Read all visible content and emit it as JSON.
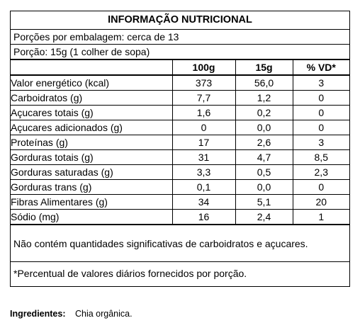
{
  "label": {
    "title": "INFORMAÇÃO NUTRICIONAL",
    "servings_per_package": "Porções por embalagem: cerca de 13",
    "serving_size": "Porção: 15g (1 colher de sopa)",
    "columns": [
      "",
      "100g",
      "15g",
      "% VD*"
    ],
    "rows": [
      {
        "name": "Valor energético (kcal)",
        "indent": 0,
        "v100": "373",
        "v15": "56,0",
        "vd": "3"
      },
      {
        "name": "Carboidratos (g)",
        "indent": 0,
        "v100": "7,7",
        "v15": "1,2",
        "vd": "0"
      },
      {
        "name": "Açucares totais (g)",
        "indent": 1,
        "v100": "1,6",
        "v15": "0,2",
        "vd": "0"
      },
      {
        "name": "Açucares adicionados (g)",
        "indent": 2,
        "v100": "0",
        "v15": "0,0",
        "vd": "0"
      },
      {
        "name": "Proteínas (g)",
        "indent": 0,
        "v100": "17",
        "v15": "2,6",
        "vd": "3"
      },
      {
        "name": "Gorduras totais (g)",
        "indent": 0,
        "v100": "31",
        "v15": "4,7",
        "vd": "8,5"
      },
      {
        "name": "Gorduras saturadas (g)",
        "indent": 1,
        "v100": "3,3",
        "v15": "0,5",
        "vd": "2,3"
      },
      {
        "name": "Gorduras trans (g)",
        "indent": 1,
        "v100": "0,1",
        "v15": "0,0",
        "vd": "0"
      },
      {
        "name": "Fibras Alimentares (g)",
        "indent": 0,
        "v100": "34",
        "v15": "5,1",
        "vd": "20"
      },
      {
        "name": "Sódio (mg)",
        "indent": 0,
        "v100": "16",
        "v15": "2,4",
        "vd": "1"
      }
    ],
    "note": "Não contém quantidades significativas de carboidratos e açucares.",
    "footnote": "*Percentual de valores diários fornecidos por porção."
  },
  "ingredients": {
    "label": "Ingredientes:",
    "value": "Chia orgânica."
  }
}
